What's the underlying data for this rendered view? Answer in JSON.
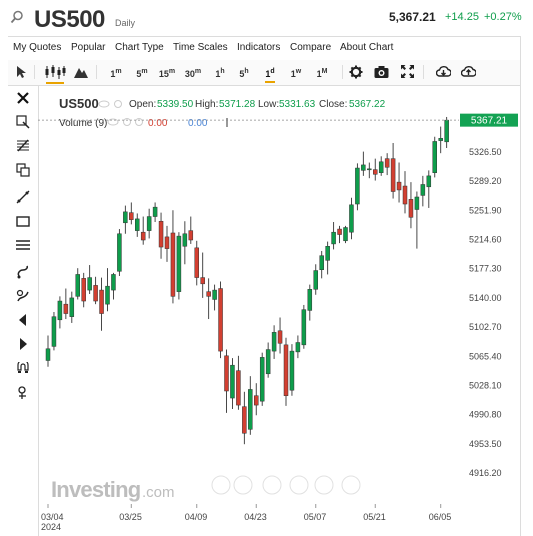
{
  "header": {
    "symbol": "US500",
    "timeframe": "Daily",
    "price": "5,367.21",
    "change": "+14.25",
    "change_pct": "+0.27%",
    "up_color": "#0e9d4b",
    "down_color": "#d23f31"
  },
  "menu": [
    "My Quotes",
    "Popular",
    "Chart Type",
    "Time Scales",
    "Indicators",
    "Compare",
    "About Chart"
  ],
  "toolbar": {
    "cursor_icon": "arrow-cursor-icon",
    "chart_type_icons": [
      "candlestick-icon",
      "mountain-icon"
    ],
    "timeframes": [
      {
        "num": "1",
        "unit": "m"
      },
      {
        "num": "5",
        "unit": "m"
      },
      {
        "num": "15",
        "unit": "m"
      },
      {
        "num": "30",
        "unit": "m"
      },
      {
        "num": "1",
        "unit": "h"
      },
      {
        "num": "5",
        "unit": "h"
      },
      {
        "num": "1",
        "unit": "d"
      },
      {
        "num": "1",
        "unit": "w"
      },
      {
        "num": "1",
        "unit": "M"
      }
    ],
    "selected_timeframe": "1d",
    "right_icons": [
      "gear-icon",
      "camera-icon",
      "fullscreen-icon",
      "cloud-download-icon",
      "cloud-upload-icon"
    ]
  },
  "left_tools": [
    "crosshair-icon",
    "zoom-select-icon",
    "fibonacci-icon",
    "clone-icon",
    "trendline-icon",
    "rectangle-icon",
    "horizontal-lines-icon",
    "brush-icon",
    "brush-alt-icon",
    "arrow-left-icon",
    "arrow-right-icon",
    "magnet-icon",
    "pin-icon"
  ],
  "legend": {
    "symbol": "US500",
    "open_label": "Open:",
    "open": "5339.50",
    "high_label": "High:",
    "high": "5371.28",
    "low_label": "Low:",
    "low": "5331.63",
    "close_label": "Close:",
    "close": "5367.22",
    "volume_label": "Volume (9)",
    "volume_a": "0.00",
    "volume_b": "0.00"
  },
  "last_price_tag": "5367.21",
  "watermark": "Investing",
  "watermark_suffix": ".com",
  "chart_data": {
    "type": "candlestick",
    "y_ticks": [
      5326.5,
      5289.2,
      5251.9,
      5214.6,
      5177.3,
      5140.0,
      5102.7,
      5065.4,
      5028.1,
      4990.8,
      4953.5,
      4916.2
    ],
    "y_tick_labels": [
      "5326.50",
      "5289.20",
      "5251.90",
      "5214.60",
      "5177.30",
      "5140.00",
      "5102.70",
      "5065.40",
      "5028.10",
      "4990.80",
      "4953.50",
      "4916.20"
    ],
    "x_tick_labels": [
      {
        "label": "03/04",
        "sub": "2024",
        "index": 0
      },
      {
        "label": "03/25",
        "sub": "",
        "index": 14
      },
      {
        "label": "04/09",
        "sub": "",
        "index": 25
      },
      {
        "label": "04/23",
        "sub": "",
        "index": 35
      },
      {
        "label": "05/07",
        "sub": "",
        "index": 45
      },
      {
        "label": "05/21",
        "sub": "",
        "index": 55
      },
      {
        "label": "06/05",
        "sub": "",
        "index": 66
      }
    ],
    "ylim": [
      4900,
      5375
    ],
    "candles": [
      {
        "o": 5060,
        "h": 5092,
        "l": 5052,
        "c": 5075
      },
      {
        "o": 5078,
        "h": 5122,
        "l": 5073,
        "c": 5116
      },
      {
        "o": 5112,
        "h": 5142,
        "l": 5101,
        "c": 5136
      },
      {
        "o": 5132,
        "h": 5152,
        "l": 5113,
        "c": 5120
      },
      {
        "o": 5116,
        "h": 5148,
        "l": 5108,
        "c": 5140
      },
      {
        "o": 5142,
        "h": 5178,
        "l": 5138,
        "c": 5170
      },
      {
        "o": 5165,
        "h": 5172,
        "l": 5128,
        "c": 5136
      },
      {
        "o": 5150,
        "h": 5182,
        "l": 5145,
        "c": 5166
      },
      {
        "o": 5156,
        "h": 5167,
        "l": 5132,
        "c": 5136
      },
      {
        "o": 5150,
        "h": 5166,
        "l": 5098,
        "c": 5120
      },
      {
        "o": 5132,
        "h": 5178,
        "l": 5123,
        "c": 5155
      },
      {
        "o": 5150,
        "h": 5172,
        "l": 5138,
        "c": 5170
      },
      {
        "o": 5174,
        "h": 5228,
        "l": 5168,
        "c": 5222
      },
      {
        "o": 5236,
        "h": 5258,
        "l": 5222,
        "c": 5250
      },
      {
        "o": 5249,
        "h": 5262,
        "l": 5234,
        "c": 5240
      },
      {
        "o": 5226,
        "h": 5248,
        "l": 5218,
        "c": 5241
      },
      {
        "o": 5224,
        "h": 5244,
        "l": 5208,
        "c": 5214
      },
      {
        "o": 5226,
        "h": 5254,
        "l": 5216,
        "c": 5244
      },
      {
        "o": 5244,
        "h": 5262,
        "l": 5237,
        "c": 5256
      },
      {
        "o": 5238,
        "h": 5249,
        "l": 5190,
        "c": 5205
      },
      {
        "o": 5218,
        "h": 5232,
        "l": 5186,
        "c": 5203
      },
      {
        "o": 5223,
        "h": 5252,
        "l": 5133,
        "c": 5142
      },
      {
        "o": 5148,
        "h": 5224,
        "l": 5138,
        "c": 5219
      },
      {
        "o": 5206,
        "h": 5238,
        "l": 5183,
        "c": 5222
      },
      {
        "o": 5226,
        "h": 5244,
        "l": 5209,
        "c": 5214
      },
      {
        "o": 5204,
        "h": 5213,
        "l": 5156,
        "c": 5166
      },
      {
        "o": 5166,
        "h": 5198,
        "l": 5140,
        "c": 5158
      },
      {
        "o": 5148,
        "h": 5165,
        "l": 5113,
        "c": 5142
      },
      {
        "o": 5138,
        "h": 5157,
        "l": 5124,
        "c": 5150
      },
      {
        "o": 5152,
        "h": 5161,
        "l": 5063,
        "c": 5072
      },
      {
        "o": 5066,
        "h": 5074,
        "l": 4993,
        "c": 5021
      },
      {
        "o": 5012,
        "h": 5063,
        "l": 4998,
        "c": 5054
      },
      {
        "o": 5047,
        "h": 5066,
        "l": 4997,
        "c": 5003
      },
      {
        "o": 5001,
        "h": 5020,
        "l": 4953,
        "c": 4967
      },
      {
        "o": 4972,
        "h": 5040,
        "l": 4965,
        "c": 5023
      },
      {
        "o": 5015,
        "h": 5031,
        "l": 4990,
        "c": 5003
      },
      {
        "o": 5008,
        "h": 5070,
        "l": 5002,
        "c": 5064
      },
      {
        "o": 5043,
        "h": 5083,
        "l": 5038,
        "c": 5074
      },
      {
        "o": 5072,
        "h": 5105,
        "l": 5062,
        "c": 5096
      },
      {
        "o": 5098,
        "h": 5115,
        "l": 5069,
        "c": 5082
      },
      {
        "o": 5080,
        "h": 5089,
        "l": 5002,
        "c": 5015
      },
      {
        "o": 5022,
        "h": 5081,
        "l": 5015,
        "c": 5072
      },
      {
        "o": 5071,
        "h": 5092,
        "l": 5063,
        "c": 5083
      },
      {
        "o": 5080,
        "h": 5131,
        "l": 5075,
        "c": 5125
      },
      {
        "o": 5124,
        "h": 5157,
        "l": 5111,
        "c": 5151
      },
      {
        "o": 5151,
        "h": 5183,
        "l": 5144,
        "c": 5175
      },
      {
        "o": 5176,
        "h": 5200,
        "l": 5165,
        "c": 5194
      },
      {
        "o": 5188,
        "h": 5212,
        "l": 5170,
        "c": 5206
      },
      {
        "o": 5209,
        "h": 5237,
        "l": 5202,
        "c": 5224
      },
      {
        "o": 5228,
        "h": 5232,
        "l": 5210,
        "c": 5221
      },
      {
        "o": 5213,
        "h": 5232,
        "l": 5210,
        "c": 5230
      },
      {
        "o": 5224,
        "h": 5268,
        "l": 5215,
        "c": 5259
      },
      {
        "o": 5260,
        "h": 5312,
        "l": 5252,
        "c": 5306
      },
      {
        "o": 5303,
        "h": 5327,
        "l": 5296,
        "c": 5310
      },
      {
        "o": 5305,
        "h": 5313,
        "l": 5293,
        "c": 5305
      },
      {
        "o": 5304,
        "h": 5318,
        "l": 5290,
        "c": 5298
      },
      {
        "o": 5300,
        "h": 5321,
        "l": 5296,
        "c": 5314
      },
      {
        "o": 5318,
        "h": 5325,
        "l": 5297,
        "c": 5307
      },
      {
        "o": 5318,
        "h": 5338,
        "l": 5267,
        "c": 5276
      },
      {
        "o": 5288,
        "h": 5313,
        "l": 5262,
        "c": 5278
      },
      {
        "o": 5283,
        "h": 5302,
        "l": 5248,
        "c": 5260
      },
      {
        "o": 5266,
        "h": 5288,
        "l": 5229,
        "c": 5243
      },
      {
        "o": 5253,
        "h": 5276,
        "l": 5203,
        "c": 5269
      },
      {
        "o": 5271,
        "h": 5296,
        "l": 5257,
        "c": 5285
      },
      {
        "o": 5282,
        "h": 5303,
        "l": 5255,
        "c": 5296
      },
      {
        "o": 5300,
        "h": 5346,
        "l": 5294,
        "c": 5340
      },
      {
        "o": 5341,
        "h": 5359,
        "l": 5325,
        "c": 5344
      },
      {
        "o": 5339.5,
        "h": 5371.28,
        "l": 5331.63,
        "c": 5367.22
      }
    ]
  }
}
